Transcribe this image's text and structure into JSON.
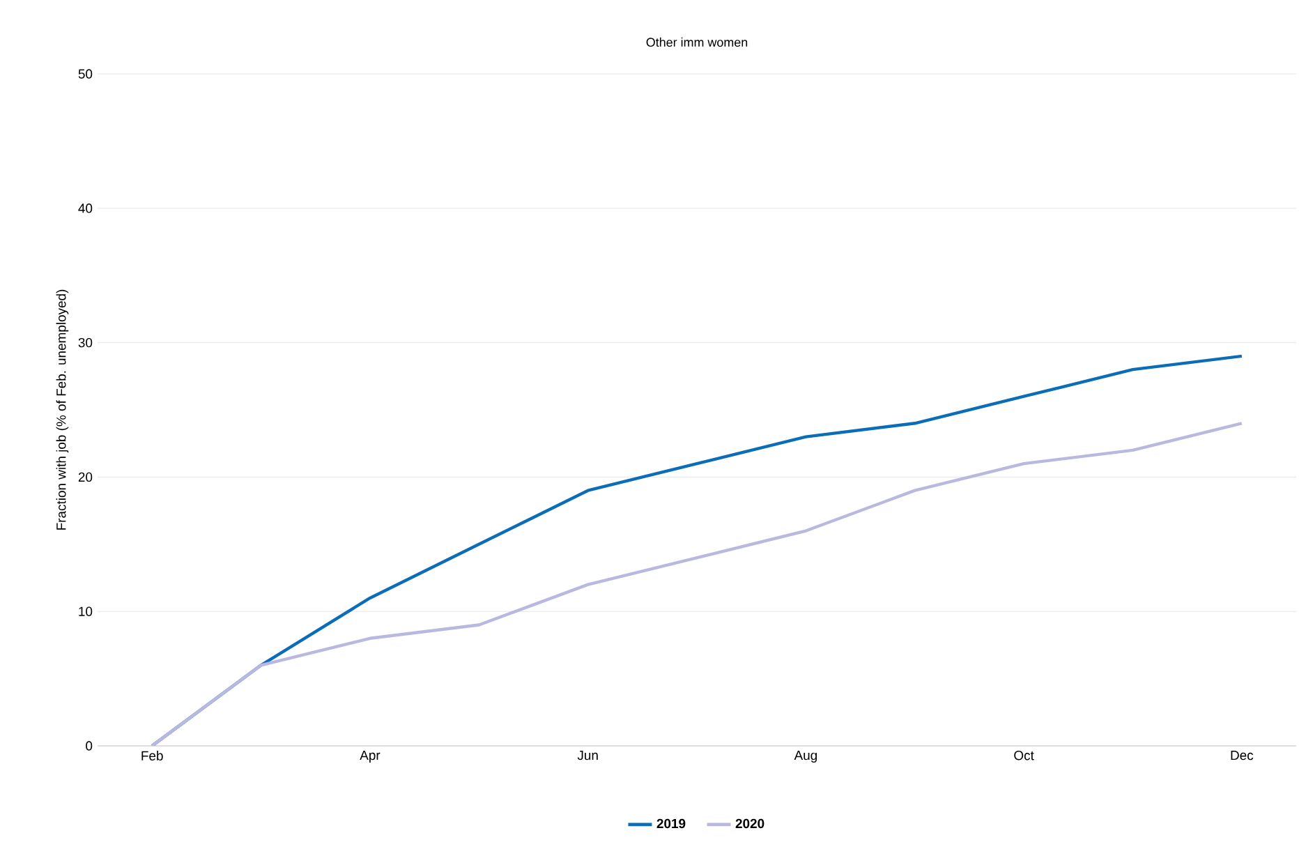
{
  "chart_data": {
    "type": "line",
    "title": "Other imm women",
    "ylabel": "Fraction with job (% of Feb. unemployed)",
    "categories": [
      "Feb",
      null,
      "Apr",
      null,
      "Jun",
      null,
      "Aug",
      null,
      "Oct",
      null,
      "Dec"
    ],
    "series": [
      {
        "name": "2019",
        "color": "#0b6db7",
        "values": [
          0,
          6,
          11,
          15,
          19,
          21,
          23,
          24,
          26,
          28,
          29
        ]
      },
      {
        "name": "2020",
        "color": "#b8b8e0",
        "values": [
          0,
          6,
          8,
          9,
          12,
          14,
          16,
          19,
          21,
          22,
          24
        ]
      }
    ],
    "ylim": [
      0,
      50
    ],
    "yticks": [
      0,
      10,
      20,
      30,
      40,
      50
    ],
    "grid": "y",
    "legend": "bottom",
    "marker": "none",
    "line_style": "solid"
  }
}
